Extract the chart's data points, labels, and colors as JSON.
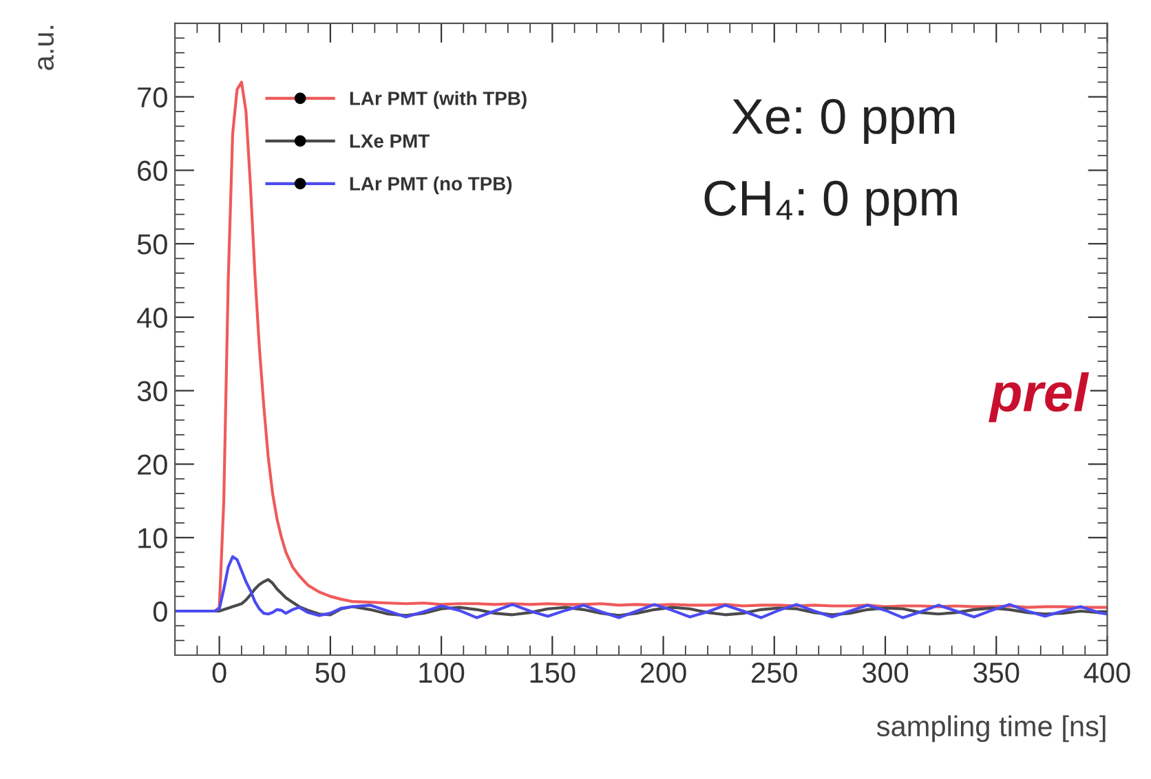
{
  "chart_data": {
    "type": "line",
    "xlabel": "sampling time [ns]",
    "ylabel": "a.u.",
    "annotations": [
      "Xe: 0 ppm",
      "CH₄: 0 ppm",
      "prel"
    ],
    "x": [
      -20,
      -10,
      -2,
      0,
      2,
      4,
      6,
      8,
      10,
      12,
      14,
      16,
      18,
      20,
      22,
      24,
      26,
      28,
      30,
      33,
      36,
      40,
      45,
      50,
      55,
      60,
      68,
      76,
      84,
      92,
      100,
      108,
      116,
      124,
      132,
      140,
      148,
      156,
      164,
      172,
      180,
      188,
      196,
      204,
      212,
      220,
      228,
      236,
      244,
      252,
      260,
      268,
      276,
      284,
      292,
      300,
      308,
      316,
      324,
      332,
      340,
      348,
      356,
      364,
      372,
      380,
      388,
      396,
      400
    ],
    "series": [
      {
        "name": "LAr PMT (with TPB)",
        "color": "#f05a5a",
        "values": [
          0,
          0,
          0,
          0.5,
          15,
          45,
          65,
          71,
          72,
          68,
          58,
          46,
          36,
          28,
          21,
          16,
          12.5,
          10,
          8,
          6,
          4.8,
          3.5,
          2.6,
          2,
          1.6,
          1.3,
          1.2,
          1.1,
          1.0,
          1.1,
          0.9,
          1.0,
          1.0,
          0.9,
          1.0,
          0.9,
          1.0,
          0.9,
          0.9,
          1.0,
          0.8,
          0.9,
          0.8,
          0.9,
          0.8,
          0.8,
          0.9,
          0.7,
          0.8,
          0.8,
          0.7,
          0.8,
          0.7,
          0.7,
          0.8,
          0.6,
          0.7,
          0.7,
          0.6,
          0.7,
          0.6,
          0.6,
          0.7,
          0.5,
          0.6,
          0.6,
          0.5,
          0.5,
          0.5
        ]
      },
      {
        "name": "LXe PMT",
        "color": "#4a4a4a",
        "values": [
          0,
          0,
          0,
          0,
          0.2,
          0.4,
          0.6,
          0.8,
          1.0,
          1.5,
          2.2,
          3.0,
          3.6,
          4.0,
          4.3,
          3.8,
          3.0,
          2.4,
          1.8,
          1.2,
          0.6,
          0.1,
          -0.4,
          -0.5,
          0.3,
          0.6,
          0.2,
          -0.4,
          -0.6,
          -0.3,
          0.3,
          0.5,
          0.2,
          -0.3,
          -0.5,
          -0.2,
          0.3,
          0.5,
          0.2,
          -0.3,
          -0.6,
          -0.3,
          0.2,
          0.5,
          0.3,
          -0.2,
          -0.5,
          -0.3,
          0.2,
          0.4,
          0.3,
          -0.2,
          -0.5,
          -0.3,
          0.2,
          0.4,
          0.3,
          -0.2,
          -0.4,
          -0.2,
          0.2,
          0.4,
          0.2,
          -0.2,
          -0.4,
          -0.3,
          0.0,
          -0.2,
          -0.2
        ]
      },
      {
        "name": "LAr PMT (no TPB)",
        "color": "#4b4bf0",
        "values": [
          0,
          0,
          0,
          0.3,
          3,
          6,
          7.4,
          7,
          5.5,
          4,
          2.8,
          1.3,
          0.3,
          -0.3,
          -0.4,
          -0.2,
          0.2,
          0.1,
          -0.3,
          0.2,
          0.5,
          -0.2,
          -0.6,
          -0.3,
          0.4,
          0.6,
          0.8,
          0,
          -0.8,
          -0.1,
          0.7,
          0.1,
          -0.9,
          0,
          0.9,
          0,
          -0.7,
          0.1,
          0.8,
          -0.1,
          -0.9,
          0,
          0.9,
          0.1,
          -0.8,
          -0.1,
          0.8,
          0,
          -0.9,
          0.1,
          0.9,
          0,
          -0.8,
          0,
          0.8,
          0.1,
          -0.9,
          -0.1,
          0.8,
          0,
          -0.8,
          0.1,
          0.9,
          0,
          -0.7,
          0,
          0.6,
          -0.2,
          -0.4
        ]
      }
    ],
    "xlim": [
      -20,
      400
    ],
    "xticks": [
      0,
      50,
      100,
      150,
      200,
      250,
      300,
      350,
      400
    ],
    "ylim": [
      -6,
      80
    ],
    "yticks": [
      0,
      10,
      20,
      30,
      40,
      50,
      60,
      70
    ],
    "grid": false,
    "legend": "top left",
    "line_style": "solid"
  }
}
